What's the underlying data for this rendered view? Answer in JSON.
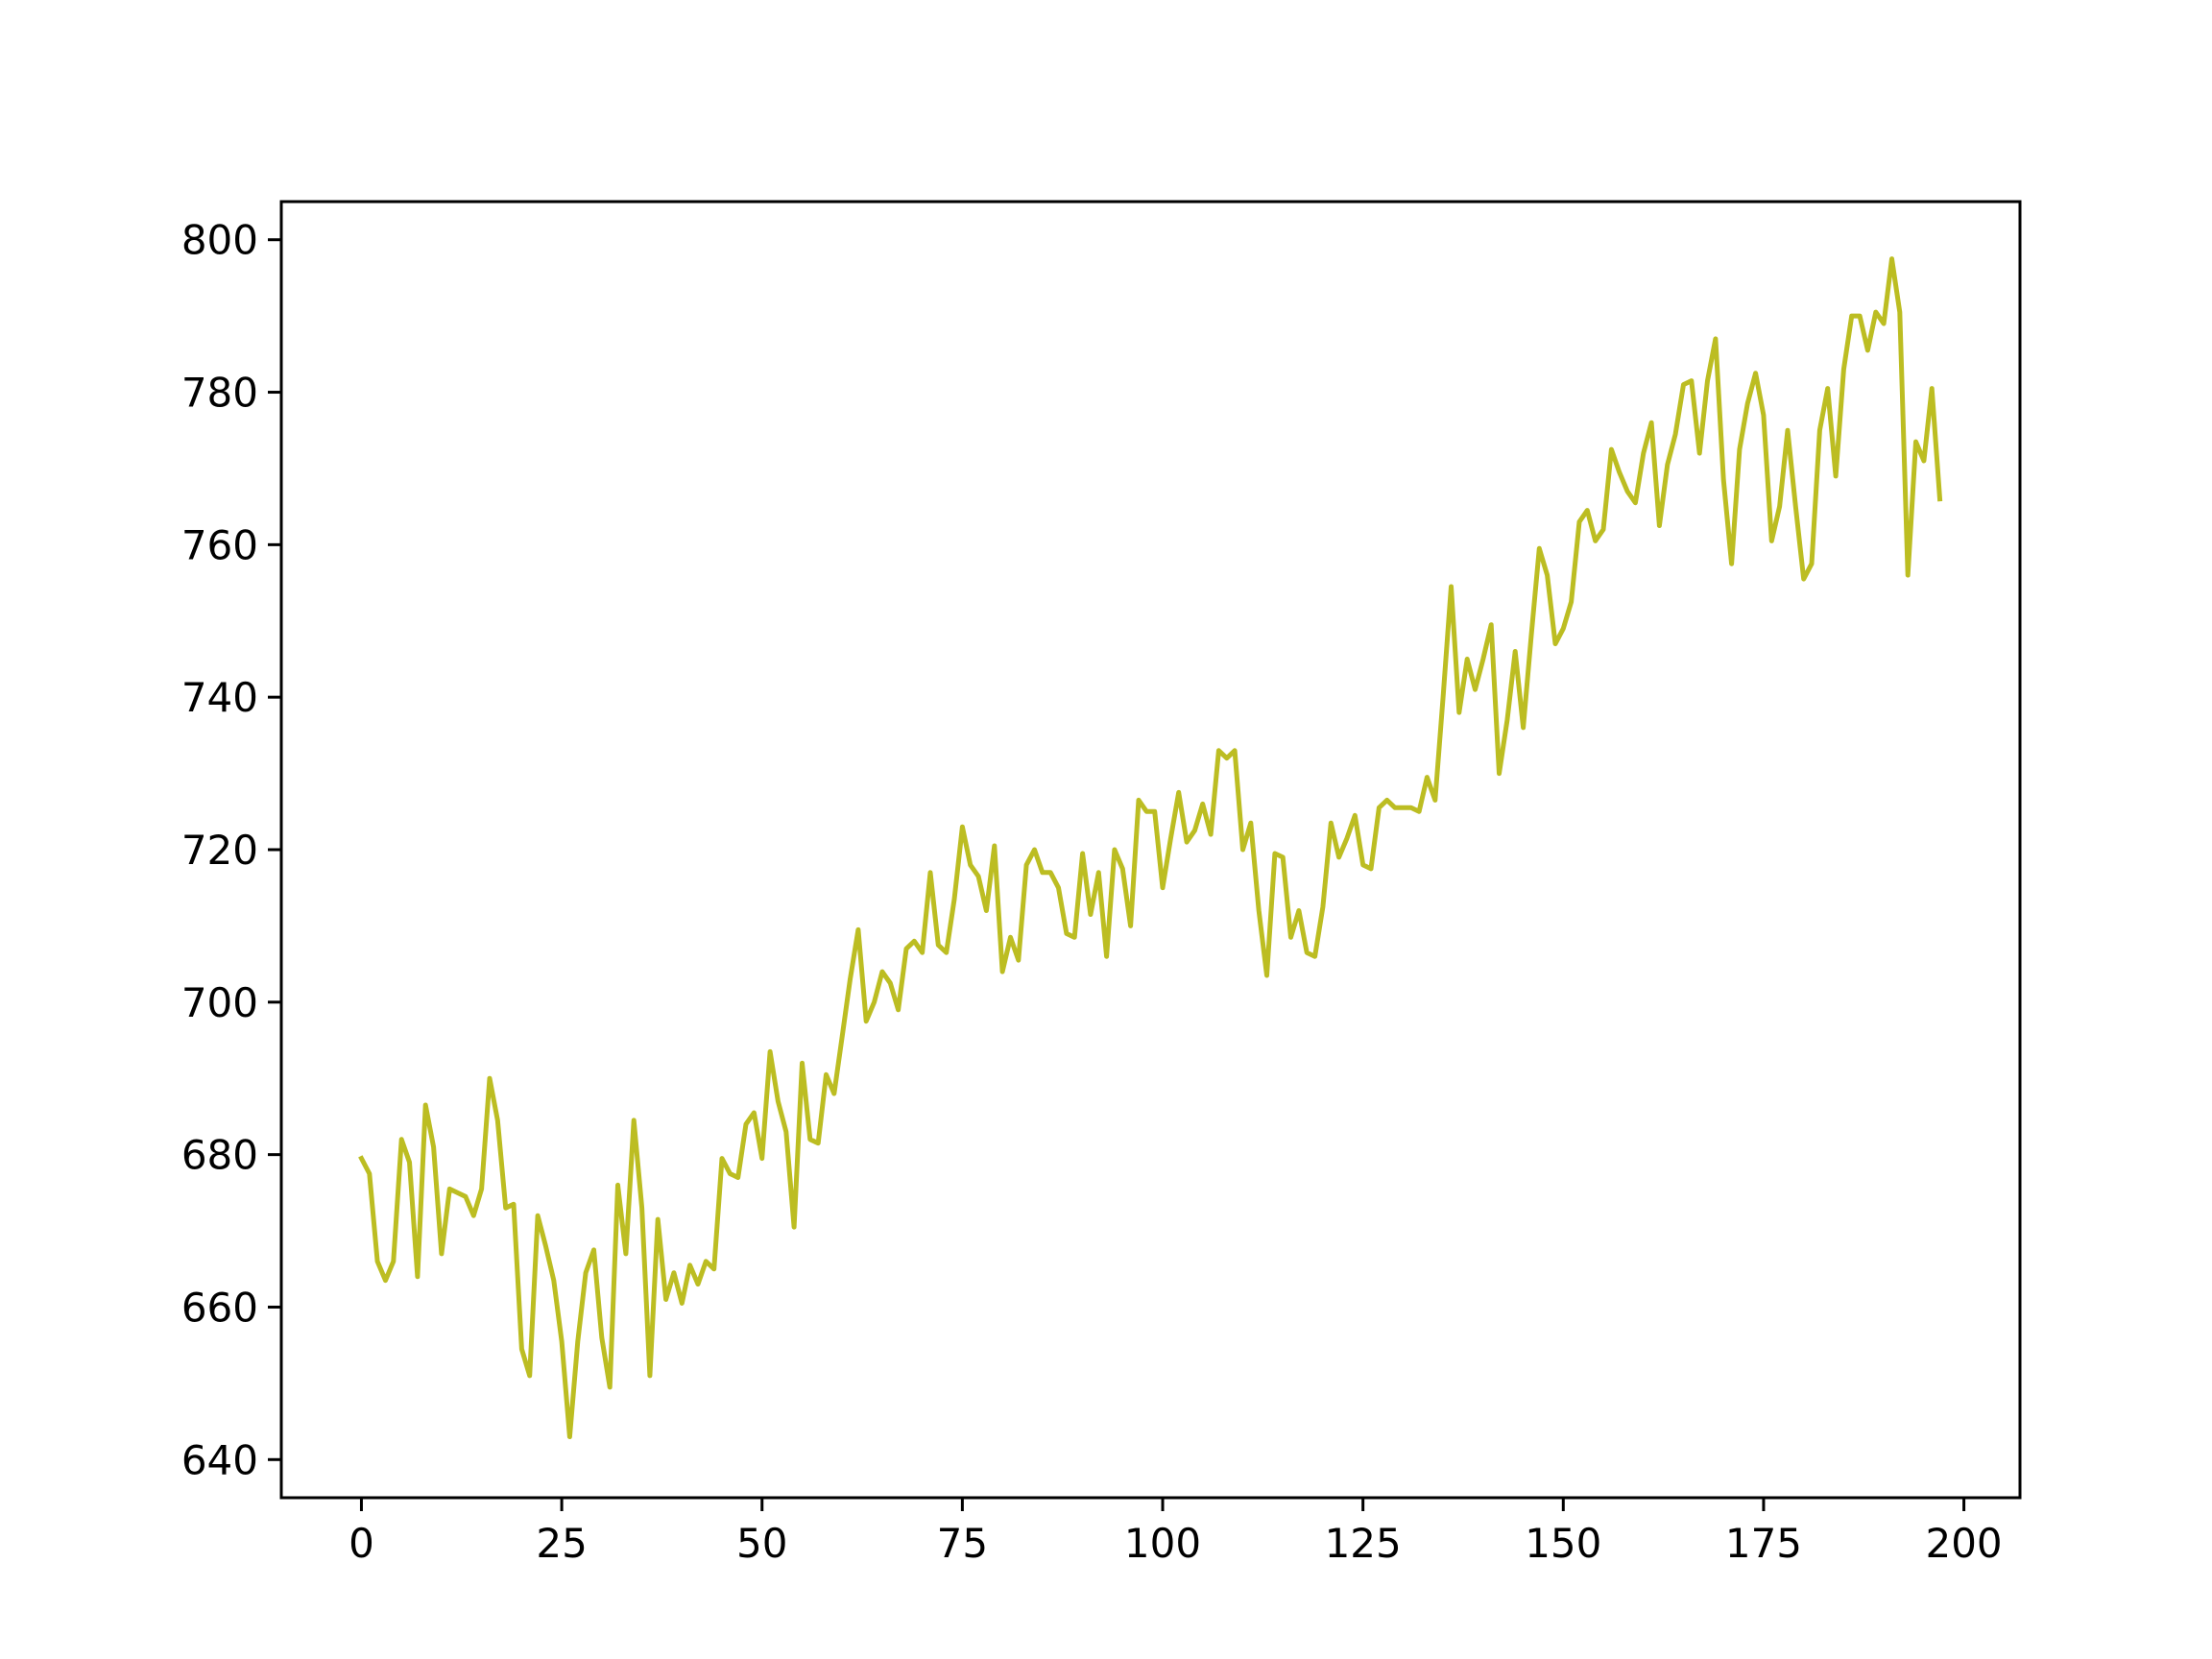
{
  "chart_data": {
    "type": "line",
    "title": "",
    "xlabel": "",
    "ylabel": "",
    "xlim": [
      -10,
      207
    ],
    "ylim": [
      635,
      805
    ],
    "x_ticks": [
      0,
      25,
      50,
      75,
      100,
      125,
      150,
      175,
      200
    ],
    "y_ticks": [
      640,
      660,
      680,
      700,
      720,
      740,
      760,
      780,
      800
    ],
    "x_tick_labels": [
      "0",
      "25",
      "50",
      "75",
      "100",
      "125",
      "150",
      "175",
      "200"
    ],
    "y_tick_labels": [
      "640",
      "660",
      "680",
      "700",
      "720",
      "740",
      "760",
      "780",
      "800"
    ],
    "grid": false,
    "legend": "none",
    "series": [
      {
        "color": "#bcbd22",
        "x": [
          0,
          1,
          2,
          3,
          4,
          5,
          6,
          7,
          8,
          9,
          10,
          11,
          12,
          13,
          14,
          15,
          16,
          17,
          18,
          19,
          20,
          21,
          22,
          23,
          24,
          25,
          26,
          27,
          28,
          29,
          30,
          31,
          32,
          33,
          34,
          35,
          36,
          37,
          38,
          39,
          40,
          41,
          42,
          43,
          44,
          45,
          46,
          47,
          48,
          49,
          50,
          51,
          52,
          53,
          54,
          55,
          56,
          57,
          58,
          59,
          60,
          61,
          62,
          63,
          64,
          65,
          66,
          67,
          68,
          69,
          70,
          71,
          72,
          73,
          74,
          75,
          76,
          77,
          78,
          79,
          80,
          81,
          82,
          83,
          84,
          85,
          86,
          87,
          88,
          89,
          90,
          91,
          92,
          93,
          94,
          95,
          96,
          97,
          98,
          99,
          100,
          101,
          102,
          103,
          104,
          105,
          106,
          107,
          108,
          109,
          110,
          111,
          112,
          113,
          114,
          115,
          116,
          117,
          118,
          119,
          120,
          121,
          122,
          123,
          124,
          125,
          126,
          127,
          128,
          129,
          130,
          131,
          132,
          133,
          134,
          135,
          136,
          137,
          138,
          139,
          140,
          141,
          142,
          143,
          144,
          145,
          146,
          147,
          148,
          149,
          150,
          151,
          152,
          153,
          154,
          155,
          156,
          157,
          158,
          159,
          160,
          161,
          162,
          163,
          164,
          165,
          166,
          167,
          168,
          169,
          170,
          171,
          172,
          173,
          174,
          175,
          176,
          177,
          178,
          179,
          180,
          181,
          182,
          183,
          184,
          185,
          186,
          187,
          188,
          189,
          190,
          191,
          192,
          193,
          194,
          195,
          196,
          197
        ],
        "values": [
          679.5,
          677.5,
          666,
          663.5,
          666,
          682,
          679,
          664,
          686.5,
          681,
          667,
          675.5,
          675,
          674.5,
          672,
          675.5,
          690,
          684.5,
          673,
          673.5,
          654.5,
          651,
          672,
          668,
          663.5,
          655.5,
          643,
          655.5,
          664.5,
          667.5,
          656,
          649.5,
          676,
          667,
          684.5,
          673,
          651,
          671.5,
          661,
          664.5,
          660.5,
          665.5,
          663,
          666,
          665,
          679.5,
          677.5,
          677,
          684,
          685.5,
          679.5,
          693.5,
          687,
          683,
          670.5,
          692,
          682,
          681.5,
          690.5,
          688,
          695.5,
          703,
          709.5,
          697.5,
          700,
          704,
          702.5,
          699,
          707,
          708,
          706.5,
          717,
          707.5,
          706.5,
          713.5,
          723,
          718,
          716.5,
          712,
          720.5,
          704,
          708.5,
          705.5,
          718,
          720,
          717,
          717,
          715,
          709,
          708.5,
          719.5,
          711.5,
          717,
          706,
          720,
          717.5,
          710,
          726.5,
          725,
          725,
          715,
          721.5,
          727.5,
          721,
          722.5,
          726,
          722,
          733,
          732,
          733,
          720,
          723.5,
          712,
          703.5,
          719.5,
          719,
          708.5,
          712,
          706.5,
          706,
          712.5,
          723.5,
          719,
          721.5,
          724.5,
          718,
          717.5,
          725.5,
          726.5,
          725.5,
          725.5,
          725.5,
          725,
          729.5,
          726.5,
          740,
          754.5,
          738,
          745,
          741,
          745,
          749.5,
          730,
          737,
          746,
          736,
          748,
          759.5,
          756,
          747,
          749,
          752.5,
          763,
          764.5,
          760.5,
          762,
          772.5,
          769.5,
          767,
          765.5,
          772,
          776,
          762.5,
          770.5,
          774.5,
          781,
          781.5,
          772,
          781.5,
          787,
          768.5,
          757.5,
          772.5,
          778.5,
          782.5,
          777,
          760.5,
          765,
          775,
          765,
          755.5,
          757.5,
          775,
          780.5,
          769,
          783,
          790,
          790,
          785.5,
          790.5,
          789,
          797.5,
          790.5,
          756,
          773.5,
          771,
          780.5,
          766
        ]
      }
    ]
  }
}
